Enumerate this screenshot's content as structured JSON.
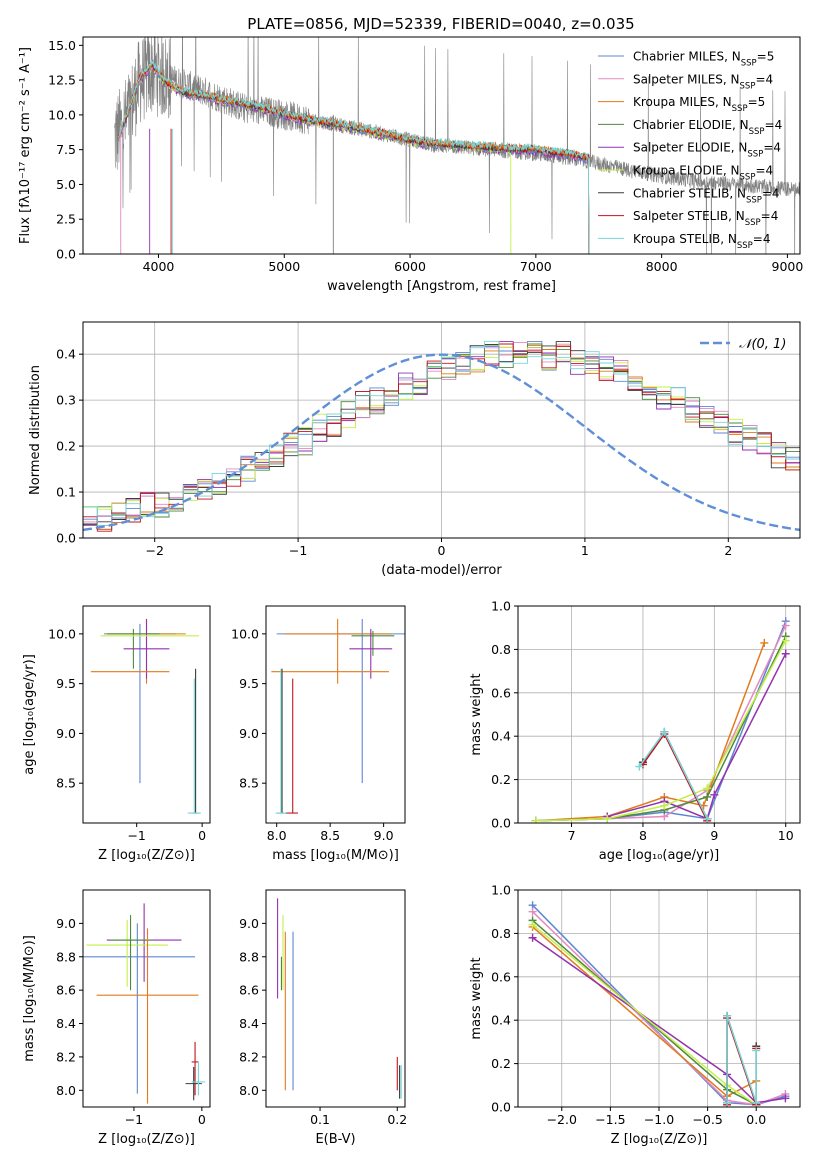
{
  "figure_title": "PLATE=0856, MJD=52339, FIBERID=0040, z=0.035",
  "models": [
    {
      "name": "Chabrier MILES, N",
      "sub": "SSP",
      "tail": "=5",
      "color": "#5f86d4"
    },
    {
      "name": "Salpeter MILES, N",
      "sub": "SSP",
      "tail": "=4",
      "color": "#e58ac0"
    },
    {
      "name": "Kroupa MILES, N",
      "sub": "SSP",
      "tail": "=5",
      "color": "#e27a1e"
    },
    {
      "name": "Chabrier ELODIE, N",
      "sub": "SSP",
      "tail": "=4",
      "color": "#4e8a3e"
    },
    {
      "name": "Salpeter ELODIE, N",
      "sub": "SSP",
      "tail": "=4",
      "color": "#9432b0"
    },
    {
      "name": "Kroupa ELODIE, N",
      "sub": "SSP",
      "tail": "=4",
      "color": "#c4ef4a"
    },
    {
      "name": "Chabrier STELIB, N",
      "sub": "SSP",
      "tail": "=4",
      "color": "#3c3c3c"
    },
    {
      "name": "Salpeter STELIB, N",
      "sub": "SSP",
      "tail": "=4",
      "color": "#c2141c"
    },
    {
      "name": "Kroupa STELIB, N",
      "sub": "SSP",
      "tail": "=4",
      "color": "#76d6d8"
    }
  ],
  "chart_data": [
    {
      "id": "spectrum",
      "type": "line",
      "xlabel": "wavelength [Angstrom, rest frame]",
      "ylabel": "Flux [fλ10⁻¹⁷ erg cm⁻² s⁻¹ A⁻¹]",
      "xlim": [
        3400,
        9100
      ],
      "ylim": [
        0,
        15.6
      ],
      "xticks": [
        4000,
        5000,
        6000,
        7000,
        8000,
        9000
      ],
      "yticks": [
        0.0,
        2.5,
        5.0,
        7.5,
        10.0,
        12.5,
        15.0
      ],
      "data_color": "#808080",
      "data_range": [
        3650,
        9100
      ],
      "data_envelope": {
        "x": [
          3650,
          3750,
          3850,
          3950,
          4100,
          4300,
          4500,
          4700,
          4900,
          5100,
          5300,
          5600,
          5900,
          6200,
          6500,
          6800,
          7100,
          7400,
          7700,
          8000,
          8300,
          8600,
          9100
        ],
        "y": [
          8.2,
          9.8,
          12.4,
          13.2,
          12.6,
          11.9,
          11.2,
          10.4,
          10.2,
          9.8,
          9.5,
          9.0,
          8.4,
          7.8,
          7.6,
          7.4,
          7.1,
          6.7,
          6.1,
          5.6,
          5.2,
          5.0,
          4.6
        ]
      },
      "model_curve": {
        "x": [
          3680,
          3750,
          3850,
          3950,
          4050,
          4200,
          4400,
          4600,
          4800,
          5000,
          5200,
          5500,
          5800,
          6100,
          6400,
          6700,
          7000,
          7300,
          7450
        ],
        "y": [
          8.3,
          10.0,
          12.6,
          13.6,
          12.4,
          11.6,
          11.3,
          10.9,
          10.6,
          10.0,
          9.6,
          9.2,
          8.6,
          8.0,
          7.8,
          7.6,
          7.5,
          7.1,
          6.8
        ]
      },
      "legend_position": "upper right"
    },
    {
      "id": "residuals",
      "type": "step",
      "xlabel": "(data-model)/error",
      "ylabel": "Normed distribution",
      "xlim": [
        -2.5,
        2.5
      ],
      "ylim": [
        0,
        0.47
      ],
      "xticks": [
        -2,
        -1,
        0,
        1,
        2
      ],
      "yticks": [
        0.0,
        0.1,
        0.2,
        0.3,
        0.4
      ],
      "grid": true,
      "bin_edges_start": -2.5,
      "bin_width": 0.1,
      "base_hist": [
        0.04,
        0.04,
        0.05,
        0.06,
        0.07,
        0.07,
        0.08,
        0.09,
        0.11,
        0.12,
        0.14,
        0.15,
        0.17,
        0.18,
        0.2,
        0.21,
        0.24,
        0.25,
        0.27,
        0.29,
        0.3,
        0.31,
        0.33,
        0.34,
        0.36,
        0.37,
        0.38,
        0.39,
        0.4,
        0.4,
        0.41,
        0.4,
        0.39,
        0.4,
        0.38,
        0.38,
        0.37,
        0.36,
        0.34,
        0.33,
        0.31,
        0.3,
        0.28,
        0.27,
        0.25,
        0.23,
        0.22,
        0.2,
        0.18,
        0.17,
        0.15,
        0.13,
        0.12,
        0.1,
        0.09,
        0.08,
        0.07,
        0.06,
        0.05,
        0.04,
        0.04,
        0.03,
        0.03,
        0.03,
        0.03,
        0.03,
        0.03,
        0.03,
        0.03,
        0.03
      ],
      "gaussian_label": "𝒩(0, 1)",
      "gaussian_color": "#5f8fd8",
      "legend_position": "upper right"
    },
    {
      "id": "age-vs-z",
      "type": "errorbar",
      "xlabel": "Z [log₁₀(Z/Z⊙)]",
      "ylabel": "age  [log₁₀(age/yr)]",
      "xlim": [
        -1.82,
        0.12
      ],
      "ylim": [
        8.1,
        10.28
      ],
      "xticks": [
        -1,
        0
      ],
      "yticks": [
        8.5,
        9.0,
        9.5,
        10.0
      ],
      "points": [
        {
          "model": 0,
          "x": -0.95,
          "y": 10.0,
          "xerr": 0.55,
          "yerr": [
            1.5,
            0.1
          ]
        },
        {
          "model": 2,
          "x": -0.85,
          "y": 10.0,
          "xerr": 0.6,
          "yerr": [
            0.5,
            0.15
          ]
        },
        {
          "model": 3,
          "x": -1.05,
          "y": 10.0,
          "xerr": 0.4,
          "yerr": [
            0.35,
            0.05
          ]
        },
        {
          "model": 4,
          "x": -0.85,
          "y": 9.85,
          "xerr": 0.35,
          "yerr": [
            0.3,
            0.3
          ]
        },
        {
          "model": 2,
          "x": -1.1,
          "y": 9.62,
          "xerr": 0.6,
          "yerr": [
            0.0,
            0.0
          ]
        },
        {
          "model": 6,
          "x": -0.1,
          "y": 8.2,
          "xerr": 0.05,
          "yerr": [
            0.0,
            1.45
          ]
        },
        {
          "model": 8,
          "x": -0.12,
          "y": 8.2,
          "xerr": 0.1,
          "yerr": [
            0.0,
            1.35
          ]
        },
        {
          "model": 5,
          "x": -0.8,
          "y": 9.98,
          "xerr": 0.75,
          "yerr": [
            0.0,
            0.0
          ]
        }
      ]
    },
    {
      "id": "age-vs-mass",
      "type": "errorbar",
      "xlabel": "mass [log₁₀(M/M⊙)]",
      "ylabel": "",
      "xlim": [
        7.9,
        9.2
      ],
      "ylim": [
        8.1,
        10.28
      ],
      "xticks": [
        8.0,
        8.5,
        9.0
      ],
      "yticks": [
        8.5,
        9.0,
        9.5,
        10.0
      ],
      "points": [
        {
          "model": 0,
          "x": 8.8,
          "y": 10.0,
          "xerr": 0.8,
          "yerr": [
            1.5,
            0.15
          ]
        },
        {
          "model": 2,
          "x": 8.57,
          "y": 10.0,
          "xerr": 0.5,
          "yerr": [
            0.5,
            0.15
          ]
        },
        {
          "model": 3,
          "x": 8.9,
          "y": 9.98,
          "xerr": 0.2,
          "yerr": [
            0.2,
            0.05
          ]
        },
        {
          "model": 4,
          "x": 8.88,
          "y": 9.85,
          "xerr": 0.2,
          "yerr": [
            0.3,
            0.2
          ]
        },
        {
          "model": 2,
          "x": 8.5,
          "y": 9.62,
          "xerr": 0.55,
          "yerr": [
            0.0,
            0.0
          ]
        },
        {
          "model": 7,
          "x": 8.15,
          "y": 8.2,
          "xerr": 0.05,
          "yerr": [
            0.0,
            1.35
          ]
        },
        {
          "model": 6,
          "x": 8.05,
          "y": 8.2,
          "xerr": 0.05,
          "yerr": [
            0.0,
            1.45
          ]
        },
        {
          "model": 8,
          "x": 8.04,
          "y": 8.2,
          "xerr": 0.05,
          "yerr": [
            0.0,
            1.45
          ]
        }
      ]
    },
    {
      "id": "weight-vs-age",
      "type": "line",
      "xlabel": "age  [log₁₀(age/yr)]",
      "ylabel": "mass weight",
      "xlim": [
        6.25,
        10.2
      ],
      "ylim": [
        0,
        1.0
      ],
      "xticks": [
        7,
        8,
        9,
        10
      ],
      "yticks": [
        0.0,
        0.2,
        0.4,
        0.6,
        0.8,
        1.0
      ],
      "grid": true,
      "series": [
        {
          "model": 0,
          "x": [
            6.5,
            7.5,
            8.3,
            8.9,
            10.0
          ],
          "y": [
            0.01,
            0.02,
            0.05,
            0.02,
            0.93
          ]
        },
        {
          "model": 1,
          "x": [
            6.5,
            7.5,
            8.3,
            8.9,
            10.0
          ],
          "y": [
            0.01,
            0.02,
            0.03,
            0.15,
            0.91
          ]
        },
        {
          "model": 2,
          "x": [
            6.5,
            7.5,
            8.3,
            8.85,
            9.7
          ],
          "y": [
            0.01,
            0.03,
            0.12,
            0.08,
            0.83
          ]
        },
        {
          "model": 3,
          "x": [
            6.5,
            7.5,
            8.3,
            8.9,
            10.0
          ],
          "y": [
            0.01,
            0.02,
            0.06,
            0.12,
            0.86
          ]
        },
        {
          "model": 4,
          "x": [
            7.5,
            8.3,
            8.9,
            9.0,
            10.0
          ],
          "y": [
            0.03,
            0.1,
            0.02,
            0.13,
            0.78
          ]
        },
        {
          "model": 5,
          "x": [
            6.5,
            7.5,
            8.3,
            8.9,
            10.0
          ],
          "y": [
            0.01,
            0.02,
            0.08,
            0.16,
            0.84
          ]
        },
        {
          "model": 6,
          "x": [
            8.0,
            8.3,
            8.9
          ],
          "y": [
            0.28,
            0.42,
            0.02
          ]
        },
        {
          "model": 7,
          "x": [
            8.0,
            8.3,
            8.9
          ],
          "y": [
            0.27,
            0.41,
            0.01
          ]
        },
        {
          "model": 8,
          "x": [
            7.95,
            8.3,
            8.9
          ],
          "y": [
            0.26,
            0.42,
            0.02
          ]
        }
      ]
    },
    {
      "id": "weight-vs-z",
      "type": "line",
      "xlabel": "Z [log₁₀(Z/Z⊙)]",
      "ylabel": "mass weight",
      "xlim": [
        -2.45,
        0.45
      ],
      "ylim": [
        0,
        1.0
      ],
      "xticks": [
        -2.0,
        -1.5,
        -1.0,
        -0.5,
        0.0
      ],
      "yticks": [
        0.0,
        0.2,
        0.4,
        0.6,
        0.8,
        1.0
      ],
      "grid": true,
      "series": [
        {
          "model": 0,
          "x": [
            -2.3,
            -0.3,
            0.0,
            0.3
          ],
          "y": [
            0.93,
            0.02,
            0.01,
            0.05
          ]
        },
        {
          "model": 1,
          "x": [
            -2.3,
            -0.3,
            0.0,
            0.3
          ],
          "y": [
            0.9,
            0.03,
            0.01,
            0.06
          ]
        },
        {
          "model": 2,
          "x": [
            -2.3,
            -0.3,
            0.0
          ],
          "y": [
            0.83,
            0.05,
            0.12
          ]
        },
        {
          "model": 3,
          "x": [
            -2.3,
            -0.3,
            0.0
          ],
          "y": [
            0.86,
            0.08,
            0.01
          ]
        },
        {
          "model": 4,
          "x": [
            -2.3,
            -0.3,
            0.0,
            0.3
          ],
          "y": [
            0.78,
            0.15,
            0.02,
            0.04
          ]
        },
        {
          "model": 5,
          "x": [
            -2.3,
            -0.3,
            0.0
          ],
          "y": [
            0.84,
            0.1,
            0.01
          ]
        },
        {
          "model": 6,
          "x": [
            -0.3,
            -0.3,
            0.0,
            0.0
          ],
          "y": [
            0.02,
            0.42,
            0.01,
            0.28
          ]
        },
        {
          "model": 7,
          "x": [
            -0.3,
            -0.3,
            0.0,
            0.0
          ],
          "y": [
            0.01,
            0.41,
            0.01,
            0.27
          ]
        },
        {
          "model": 8,
          "x": [
            -0.3,
            -0.3,
            0.0,
            0.0
          ],
          "y": [
            0.02,
            0.42,
            0.02,
            0.26
          ]
        }
      ]
    },
    {
      "id": "mass-vs-z",
      "type": "errorbar",
      "xlabel": "Z [log₁₀(Z/Z⊙)]",
      "ylabel": "mass [log₁₀(M/M⊙)]",
      "xlim": [
        -1.75,
        0.12
      ],
      "ylim": [
        7.9,
        9.2
      ],
      "xticks": [
        -1,
        0
      ],
      "yticks": [
        8.0,
        8.2,
        8.4,
        8.6,
        8.8,
        9.0
      ],
      "points": [
        {
          "model": 0,
          "x": -0.95,
          "y": 8.8,
          "xerr": 0.85,
          "yerr": [
            0.82,
            0.2
          ]
        },
        {
          "model": 4,
          "x": -0.85,
          "y": 8.9,
          "xerr": 0.55,
          "yerr": [
            0.25,
            0.22
          ]
        },
        {
          "model": 5,
          "x": -1.1,
          "y": 8.87,
          "xerr": 0.6,
          "yerr": [
            0.25,
            0.15
          ]
        },
        {
          "model": 3,
          "x": -1.05,
          "y": 8.9,
          "xerr": 0.3,
          "yerr": [
            0.3,
            0.15
          ]
        },
        {
          "model": 2,
          "x": -0.8,
          "y": 8.57,
          "xerr": 0.75,
          "yerr": [
            0.65,
            0.4
          ]
        },
        {
          "model": 7,
          "x": -0.1,
          "y": 8.17,
          "xerr": 0.05,
          "yerr": [
            0.2,
            0.12
          ]
        },
        {
          "model": 6,
          "x": -0.12,
          "y": 8.04,
          "xerr": 0.12,
          "yerr": [
            0.1,
            0.1
          ]
        },
        {
          "model": 8,
          "x": -0.05,
          "y": 8.05,
          "xerr": 0.1,
          "yerr": [
            0.08,
            0.12
          ]
        }
      ]
    },
    {
      "id": "mass-vs-ebv",
      "type": "errorbar",
      "xlabel": "E(B-V)",
      "ylabel": "",
      "xlim": [
        0.03,
        0.21
      ],
      "ylim": [
        7.9,
        9.2
      ],
      "xticks": [
        0.1,
        0.2
      ],
      "yticks": [
        8.0,
        8.2,
        8.4,
        8.6,
        8.8,
        9.0
      ],
      "points": [
        {
          "model": 4,
          "x": 0.045,
          "y": 8.85,
          "yerr": [
            0.3,
            0.3
          ]
        },
        {
          "model": 5,
          "x": 0.052,
          "y": 8.85,
          "yerr": [
            0.25,
            0.2
          ]
        },
        {
          "model": 2,
          "x": 0.055,
          "y": 8.6,
          "yerr": [
            0.6,
            0.35
          ]
        },
        {
          "model": 0,
          "x": 0.065,
          "y": 8.5,
          "yerr": [
            0.5,
            0.45
          ]
        },
        {
          "model": 3,
          "x": 0.05,
          "y": 8.7,
          "yerr": [
            0.1,
            0.1
          ]
        },
        {
          "model": 7,
          "x": 0.2,
          "y": 8.1,
          "yerr": [
            0.1,
            0.1
          ]
        },
        {
          "model": 6,
          "x": 0.203,
          "y": 8.05,
          "yerr": [
            0.1,
            0.1
          ]
        },
        {
          "model": 8,
          "x": 0.205,
          "y": 8.05,
          "yerr": [
            0.1,
            0.1
          ]
        }
      ]
    }
  ]
}
